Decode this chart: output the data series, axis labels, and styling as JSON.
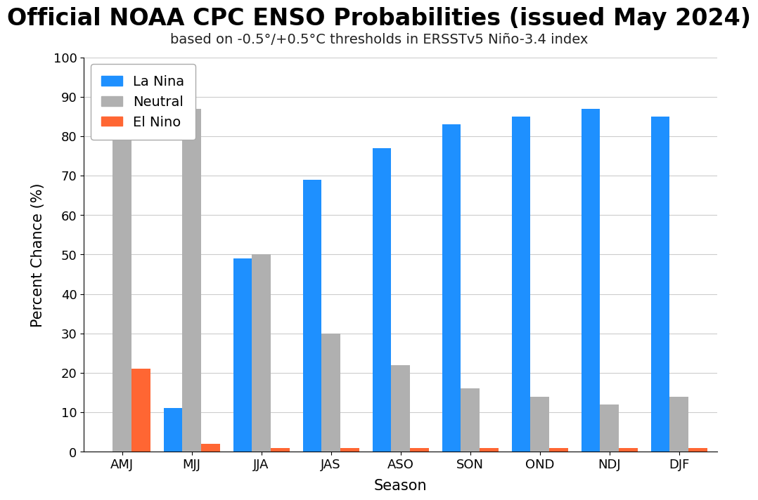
{
  "title": "Official NOAA CPC ENSO Probabilities (issued May 2024)",
  "subtitle": "based on -0.5°/+0.5°C thresholds in ERSSTv5 Niño-3.4 index",
  "xlabel": "Season",
  "ylabel": "Percent Chance (%)",
  "seasons": [
    "AMJ",
    "MJJ",
    "JJA",
    "JAS",
    "ASO",
    "SON",
    "OND",
    "NDJ",
    "DJF"
  ],
  "la_nina": [
    0,
    11,
    49,
    69,
    77,
    83,
    85,
    87,
    85
  ],
  "neutral": [
    79,
    87,
    50,
    30,
    22,
    16,
    14,
    12,
    14
  ],
  "el_nino": [
    21,
    2,
    1,
    1,
    1,
    1,
    1,
    1,
    1
  ],
  "la_nina_color": "#1E90FF",
  "neutral_color": "#B0B0B0",
  "el_nino_color": "#FF6633",
  "ylim": [
    0,
    100
  ],
  "yticks": [
    0,
    10,
    20,
    30,
    40,
    50,
    60,
    70,
    80,
    90,
    100
  ],
  "background_color": "#FFFFFF",
  "grid_color": "#CCCCCC",
  "title_fontsize": 24,
  "subtitle_fontsize": 14,
  "label_fontsize": 15,
  "tick_fontsize": 13,
  "legend_fontsize": 14,
  "bar_width": 0.27
}
